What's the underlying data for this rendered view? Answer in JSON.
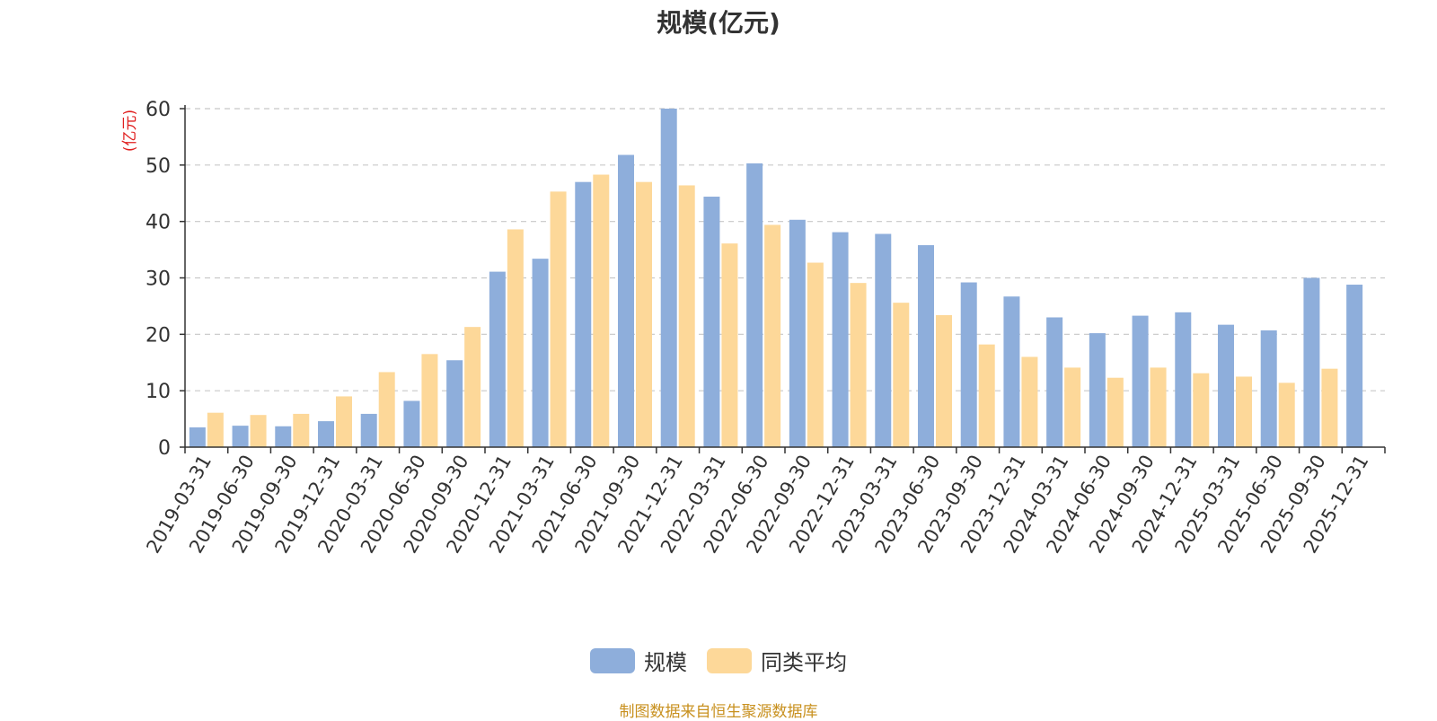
{
  "chart_data": {
    "type": "bar",
    "title": "规模(亿元)",
    "ylabel": "(亿元)",
    "xlabel": "",
    "ylim": [
      0,
      60
    ],
    "yticks": [
      0,
      10,
      20,
      30,
      40,
      50,
      60
    ],
    "grid": true,
    "legend_position": "bottom-center",
    "categories": [
      "2019-03-31",
      "2019-06-30",
      "2019-09-30",
      "2019-12-31",
      "2020-03-31",
      "2020-06-30",
      "2020-09-30",
      "2020-12-31",
      "2021-03-31",
      "2021-06-30",
      "2021-09-30",
      "2021-12-31",
      "2022-03-31",
      "2022-06-30",
      "2022-09-30",
      "2022-12-31",
      "2023-03-31",
      "2023-06-30",
      "2023-09-30",
      "2023-12-31",
      "2024-03-31",
      "2024-06-30",
      "2024-09-30",
      "2024-12-31",
      "2025-03-31",
      "2025-06-30",
      "2025-09-30",
      "2025-12-31"
    ],
    "series": [
      {
        "name": "规模",
        "color": "#8eaedb",
        "values": [
          3.5,
          3.8,
          3.7,
          4.6,
          5.9,
          8.2,
          15.4,
          31.1,
          33.4,
          47.0,
          51.8,
          60.0,
          44.4,
          50.3,
          40.3,
          38.1,
          37.8,
          35.8,
          29.2,
          26.7,
          23.0,
          20.2,
          23.3,
          23.9,
          21.7,
          20.7,
          30.0,
          28.8
        ]
      },
      {
        "name": "同类平均",
        "color": "#fdd899",
        "values": [
          6.1,
          5.7,
          5.9,
          9.0,
          13.3,
          16.5,
          21.3,
          38.6,
          45.3,
          48.3,
          47.0,
          46.4,
          36.1,
          39.4,
          32.7,
          29.1,
          25.6,
          23.4,
          18.2,
          16.0,
          14.1,
          12.3,
          14.1,
          13.1,
          12.5,
          11.4,
          13.9,
          null
        ]
      }
    ]
  },
  "legend": {
    "items": [
      "规模",
      "同类平均"
    ]
  },
  "source_text": "制图数据来自恒生聚源数据库"
}
